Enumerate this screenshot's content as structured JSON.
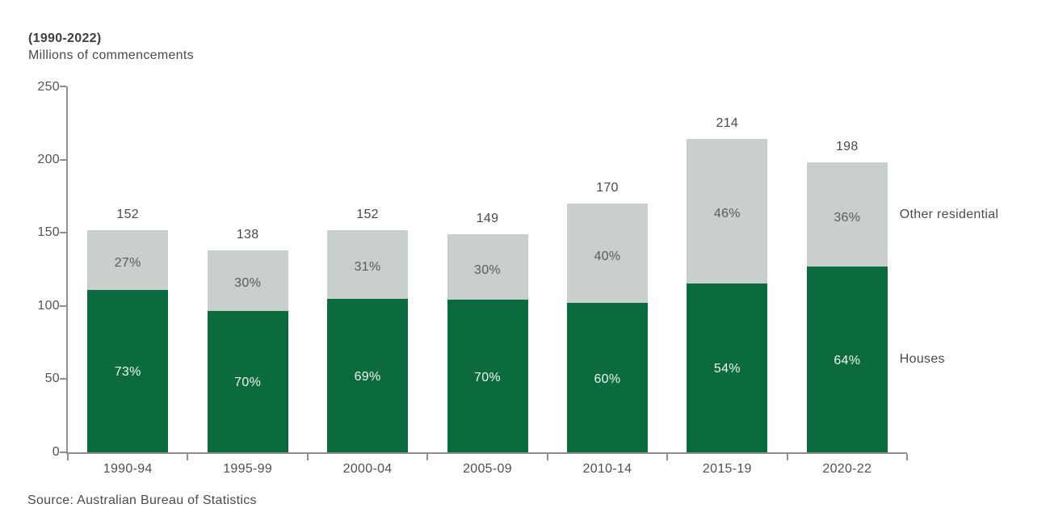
{
  "header": {
    "title": "(1990-2022)",
    "subtitle": "Millions of commencements"
  },
  "footer": {
    "source": "Source: Australian Bureau of Statistics"
  },
  "colors": {
    "houses": "#0b6b3e",
    "other_residential": "#c9cfcc",
    "axis": "#8f8f8f",
    "text_dark": "#4a4a4a",
    "pct_on_green": "#f0f6f2",
    "pct_on_gray": "#575c5a"
  },
  "chart_data": {
    "type": "bar",
    "stacked": true,
    "title": "(1990-2022)",
    "subtitle": "Millions of commencements",
    "categories": [
      "1990-94",
      "1995-99",
      "2000-04",
      "2005-09",
      "2010-14",
      "2015-19",
      "2020-22"
    ],
    "totals": [
      152,
      138,
      152,
      149,
      170,
      214,
      198
    ],
    "series": [
      {
        "name": "Houses",
        "percents": [
          73,
          70,
          69,
          70,
          60,
          54,
          64
        ]
      },
      {
        "name": "Other residential",
        "percents": [
          27,
          30,
          31,
          30,
          40,
          46,
          36
        ]
      }
    ],
    "ylim": [
      0,
      250
    ],
    "yticks": [
      0,
      50,
      100,
      150,
      200,
      250
    ],
    "grid": false,
    "legend_position": "right-of-last-bar",
    "source": "Source: Australian Bureau of Statistics"
  }
}
